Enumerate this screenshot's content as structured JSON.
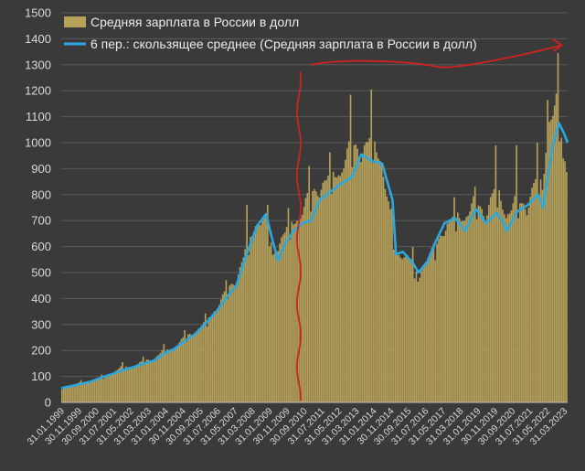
{
  "chart_data": {
    "type": "bar",
    "title": "",
    "xlabel": "",
    "ylabel": "",
    "ylim": [
      0,
      1500
    ],
    "yticks": [
      0,
      100,
      200,
      300,
      400,
      500,
      600,
      700,
      800,
      900,
      1000,
      1100,
      1200,
      1300,
      1400,
      1500
    ],
    "grid": true,
    "legend_position": "top-left",
    "x_tick_labels": [
      "31.01.1999",
      "30.11.1999",
      "30.09.2000",
      "31.07.2001",
      "31.05.2002",
      "31.03.2003",
      "31.01.2004",
      "30.11.2004",
      "30.09.2005",
      "31.07.2006",
      "31.05.2007",
      "31.03.2008",
      "31.01.2009",
      "30.11.2009",
      "30.09.2010",
      "31.07.2011",
      "31.05.2012",
      "31.03.2013",
      "31.01.2014",
      "30.11.2014",
      "30.09.2015",
      "31.07.2016",
      "31.05.2017",
      "31.03.2018",
      "31.01.2019",
      "30.11.2019",
      "30.09.2020",
      "31.07.2021",
      "31.05.2022",
      "31.03.2023"
    ],
    "x_range": [
      "1999-01",
      "2023-05"
    ],
    "series": [
      {
        "name": "Средняя зарплата в России в долл",
        "kind": "bar",
        "color": "#b8a25a",
        "anchors": [
          [
            "1999-01",
            55
          ],
          [
            "1999-06",
            62
          ],
          [
            "1999-12",
            80
          ],
          [
            "2000-06",
            82
          ],
          [
            "2000-12",
            100
          ],
          [
            "2001-06",
            108
          ],
          [
            "2001-12",
            145
          ],
          [
            "2002-06",
            130
          ],
          [
            "2002-12",
            165
          ],
          [
            "2003-06",
            160
          ],
          [
            "2003-12",
            210
          ],
          [
            "2004-06",
            200
          ],
          [
            "2004-12",
            260
          ],
          [
            "2005-06",
            260
          ],
          [
            "2005-12",
            320
          ],
          [
            "2006-06",
            350
          ],
          [
            "2006-12",
            440
          ],
          [
            "2007-06",
            460
          ],
          [
            "2007-12",
            620
          ],
          [
            "2008-06",
            680
          ],
          [
            "2008-12",
            720
          ],
          [
            "2009-03",
            560
          ],
          [
            "2009-06",
            590
          ],
          [
            "2009-12",
            700
          ],
          [
            "2010-06",
            690
          ],
          [
            "2010-12",
            820
          ],
          [
            "2011-06",
            800
          ],
          [
            "2011-12",
            900
          ],
          [
            "2012-06",
            860
          ],
          [
            "2012-12",
            1020
          ],
          [
            "2013-06",
            940
          ],
          [
            "2013-12",
            1050
          ],
          [
            "2014-06",
            900
          ],
          [
            "2014-12",
            700
          ],
          [
            "2015-03",
            560
          ],
          [
            "2015-06",
            560
          ],
          [
            "2015-12",
            560
          ],
          [
            "2016-03",
            470
          ],
          [
            "2016-06",
            520
          ],
          [
            "2016-12",
            600
          ],
          [
            "2017-06",
            650
          ],
          [
            "2017-12",
            740
          ],
          [
            "2018-06",
            690
          ],
          [
            "2018-12",
            800
          ],
          [
            "2019-06",
            700
          ],
          [
            "2019-12",
            860
          ],
          [
            "2020-06",
            700
          ],
          [
            "2020-12",
            800
          ],
          [
            "2021-06",
            730
          ],
          [
            "2021-12",
            900
          ],
          [
            "2022-03",
            820
          ],
          [
            "2022-06",
            1040
          ],
          [
            "2022-12",
            1200
          ],
          [
            "2023-03",
            950
          ],
          [
            "2023-05",
            880
          ]
        ],
        "notable_peaks": [
          [
            "2007-12",
            760
          ],
          [
            "2008-12",
            760
          ],
          [
            "2010-12",
            910
          ],
          [
            "2012-12",
            1185
          ],
          [
            "2013-12",
            1205
          ],
          [
            "2016-12",
            610
          ],
          [
            "2017-12",
            790
          ],
          [
            "2018-12",
            830
          ],
          [
            "2019-12",
            990
          ],
          [
            "2020-12",
            990
          ],
          [
            "2021-12",
            1000
          ],
          [
            "2022-06",
            1165
          ],
          [
            "2022-12",
            1345
          ],
          [
            "2023-03",
            940
          ]
        ]
      },
      {
        "name": "6 пер.: скользящее среднее (Средняя зарплата в России в долл)",
        "kind": "line",
        "color": "#29a9e0",
        "points": [
          [
            "1999-01",
            55
          ],
          [
            "1999-06",
            62
          ],
          [
            "2000-01",
            72
          ],
          [
            "2000-06",
            80
          ],
          [
            "2001-01",
            98
          ],
          [
            "2001-06",
            108
          ],
          [
            "2002-01",
            125
          ],
          [
            "2002-06",
            135
          ],
          [
            "2003-01",
            150
          ],
          [
            "2003-06",
            160
          ],
          [
            "2004-01",
            190
          ],
          [
            "2004-06",
            205
          ],
          [
            "2005-01",
            240
          ],
          [
            "2005-06",
            262
          ],
          [
            "2006-01",
            310
          ],
          [
            "2006-06",
            345
          ],
          [
            "2007-01",
            410
          ],
          [
            "2007-06",
            450
          ],
          [
            "2008-01",
            590
          ],
          [
            "2008-06",
            680
          ],
          [
            "2008-11",
            725
          ],
          [
            "2009-03",
            620
          ],
          [
            "2009-06",
            545
          ],
          [
            "2009-10",
            610
          ],
          [
            "2010-03",
            660
          ],
          [
            "2010-08",
            690
          ],
          [
            "2011-01",
            700
          ],
          [
            "2011-06",
            780
          ],
          [
            "2012-01",
            815
          ],
          [
            "2012-06",
            840
          ],
          [
            "2013-01",
            870
          ],
          [
            "2013-06",
            955
          ],
          [
            "2013-12",
            930
          ],
          [
            "2014-06",
            920
          ],
          [
            "2014-12",
            780
          ],
          [
            "2015-02",
            570
          ],
          [
            "2015-06",
            580
          ],
          [
            "2015-12",
            535
          ],
          [
            "2016-03",
            500
          ],
          [
            "2016-08",
            540
          ],
          [
            "2017-01",
            620
          ],
          [
            "2017-06",
            690
          ],
          [
            "2017-12",
            710
          ],
          [
            "2018-06",
            660
          ],
          [
            "2018-12",
            745
          ],
          [
            "2019-06",
            690
          ],
          [
            "2019-12",
            730
          ],
          [
            "2020-03",
            700
          ],
          [
            "2020-06",
            660
          ],
          [
            "2020-12",
            735
          ],
          [
            "2021-06",
            760
          ],
          [
            "2021-12",
            800
          ],
          [
            "2022-03",
            750
          ],
          [
            "2022-08",
            980
          ],
          [
            "2022-12",
            1075
          ],
          [
            "2023-03",
            1035
          ],
          [
            "2023-05",
            1000
          ]
        ]
      }
    ],
    "annotations": [
      {
        "type": "vertical-hand-drawn-line",
        "color": "#d0221f",
        "x": "2010-06"
      },
      {
        "type": "hand-drawn-arrow",
        "color": "#d0221f",
        "from": [
          "2011-01",
          1300
        ],
        "to": [
          "2023-01",
          1375
        ]
      }
    ]
  }
}
